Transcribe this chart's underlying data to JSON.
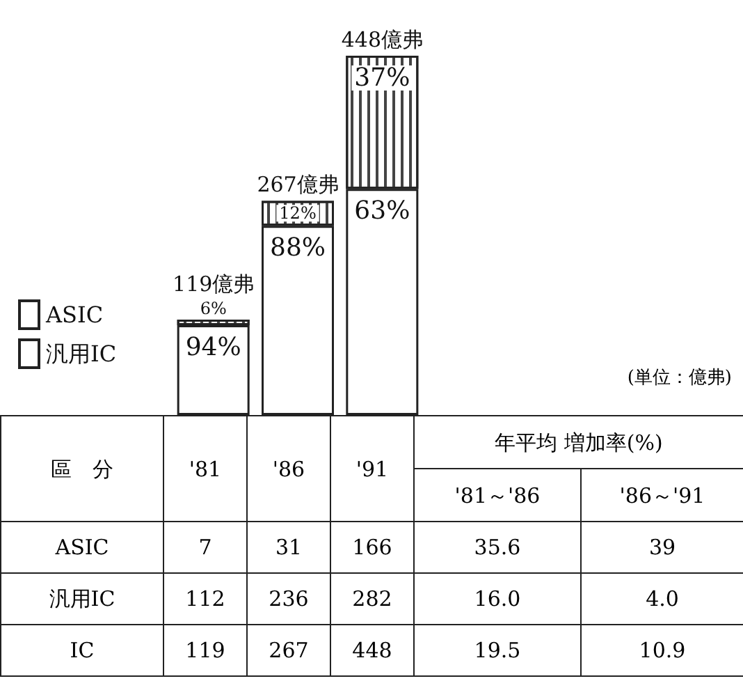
{
  "chart_data": {
    "type": "bar",
    "stacked": true,
    "categories": [
      "'81",
      "'86",
      "'91"
    ],
    "series": [
      {
        "name": "汎用IC",
        "color": "#ffffff",
        "values": [
          112,
          236,
          282
        ]
      },
      {
        "name": "ASIC",
        "color": "#ffffff",
        "values": [
          7,
          31,
          166
        ]
      }
    ],
    "totals": [
      "119億弗",
      "267億弗",
      "448億弗"
    ],
    "data_labels": true,
    "legend": "left",
    "annotations": [
      {
        "text": "94%",
        "x": "'81",
        "y": 112
      },
      {
        "text": "6%",
        "x": "'81",
        "y": 119
      },
      {
        "text": "88%",
        "x": "'86",
        "y": 236
      },
      {
        "text": "12%",
        "x": "'86",
        "y": 267
      },
      {
        "text": "63%",
        "x": "'91",
        "y": 282
      },
      {
        "text": "37%",
        "x": "'91",
        "y": 448
      },
      "(単位：億弗)",
      "區　分",
      "年平均 増加率(%)",
      "'81～'86",
      "'86～'91",
      "IC",
      "119",
      "267",
      "448",
      "16.0",
      "4.0",
      "35.6",
      "39",
      "19.5",
      "10.9"
    ]
  }
}
